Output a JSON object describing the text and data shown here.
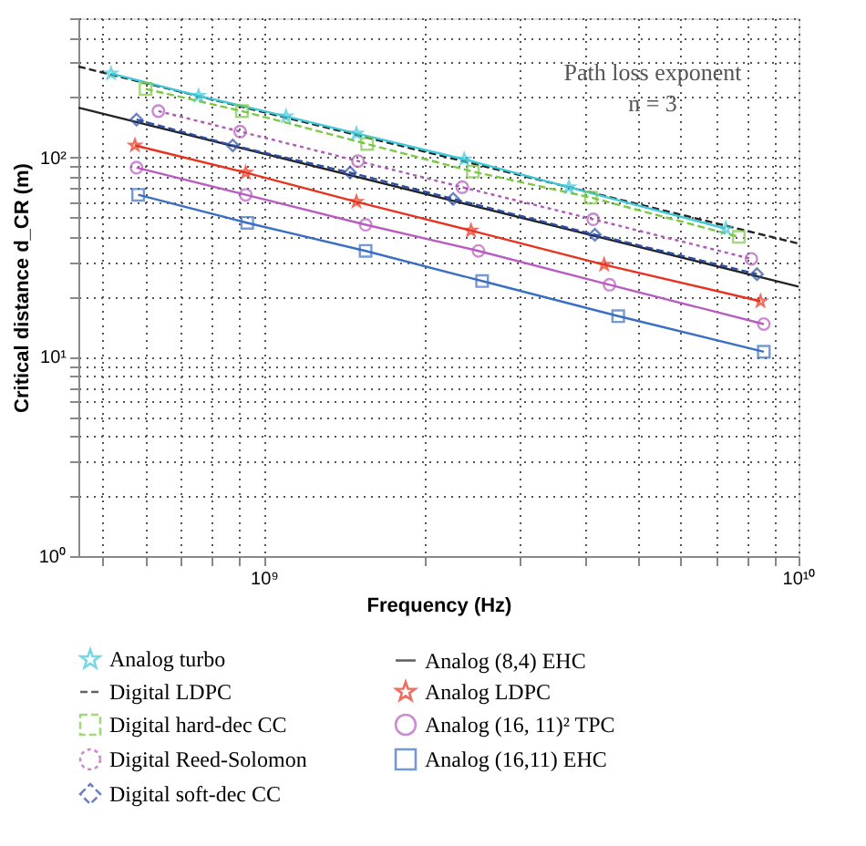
{
  "chart_data": {
    "type": "line",
    "xlabel": "Frequency (Hz)",
    "ylabel": "Critical distance d_CR (m)",
    "log": "xy",
    "grid": true,
    "legend": "bottom",
    "xlim": [
      450000000,
      10000000000
    ],
    "ylim": [
      1,
      500
    ],
    "xticks": [
      {
        "value": 500000000,
        "label": null
      },
      {
        "value": 600000000,
        "label": null
      },
      {
        "value": 700000000,
        "label": null
      },
      {
        "value": 800000000,
        "label": null
      },
      {
        "value": 900000000,
        "label": null
      },
      {
        "value": 1000000000,
        "label": "10⁹"
      },
      {
        "value": 2000000000,
        "label": null
      },
      {
        "value": 3000000000,
        "label": null
      },
      {
        "value": 4000000000,
        "label": null
      },
      {
        "value": 5000000000,
        "label": null
      },
      {
        "value": 6000000000,
        "label": null
      },
      {
        "value": 7000000000,
        "label": null
      },
      {
        "value": 8000000000,
        "label": null
      },
      {
        "value": 9000000000,
        "label": null
      },
      {
        "value": 10000000000,
        "label": "10¹⁰"
      }
    ],
    "yticks": [
      {
        "value": 1,
        "label": "10⁰"
      },
      {
        "value": 2,
        "label": null
      },
      {
        "value": 3,
        "label": null
      },
      {
        "value": 4,
        "label": null
      },
      {
        "value": 5,
        "label": null
      },
      {
        "value": 6,
        "label": null
      },
      {
        "value": 7,
        "label": null
      },
      {
        "value": 8,
        "label": null
      },
      {
        "value": 9,
        "label": null
      },
      {
        "value": 10,
        "label": "10¹"
      },
      {
        "value": 20,
        "label": null
      },
      {
        "value": 30,
        "label": null
      },
      {
        "value": 40,
        "label": null
      },
      {
        "value": 50,
        "label": null
      },
      {
        "value": 60,
        "label": null
      },
      {
        "value": 70,
        "label": null
      },
      {
        "value": 80,
        "label": null
      },
      {
        "value": 90,
        "label": null
      },
      {
        "value": 100,
        "label": "10²"
      },
      {
        "value": 200,
        "label": null
      },
      {
        "value": 300,
        "label": null
      },
      {
        "value": 400,
        "label": null
      },
      {
        "value": 500,
        "label": null
      }
    ],
    "annotations": [
      "Path loss exponent",
      "n = 3"
    ],
    "series": [
      {
        "name": "Analog turbo",
        "color": "#3ec8d8",
        "marker": "star",
        "line_style": "solid",
        "x": [
          518000000,
          755000000,
          1100000000,
          1490000000,
          2370000000,
          3720000000,
          7310000000
        ],
        "values": [
          264,
          204,
          161,
          132,
          98,
          71,
          44
        ]
      },
      {
        "name": "Digital LDPC",
        "color": "#222222",
        "marker": "none",
        "line_style": "dashed",
        "x": [
          450000000,
          10000000000
        ],
        "values": [
          286,
          37
        ]
      },
      {
        "name": "Digital hard-dec CC",
        "color": "#7ac943",
        "marker": "square",
        "line_style": "dashed",
        "x": [
          601000000,
          910000000,
          1560000000,
          2460000000,
          4090000000,
          7730000000
        ],
        "values": [
          221,
          171,
          117,
          85,
          63,
          40
        ]
      },
      {
        "name": "Digital Reed-Solomon",
        "color": "#b05ab8",
        "marker": "circle",
        "line_style": "dotted",
        "x": [
          635000000,
          903000000,
          1500000000,
          2350000000,
          4130000000,
          8160000000
        ],
        "values": [
          171,
          135,
          96,
          71,
          49,
          31
        ]
      },
      {
        "name": "Digital soft-dec CC",
        "color": "#2e4fa8",
        "marker": "diamond",
        "line_style": "dashed",
        "x": [
          578000000,
          875000000,
          1450000000,
          2260000000,
          4160000000,
          8360000000
        ],
        "values": [
          155,
          115,
          84,
          62,
          41,
          26
        ]
      },
      {
        "name": "Analog (8,4) EHC",
        "color": "#222222",
        "marker": "none",
        "line_style": "solid",
        "x": [
          450000000,
          10000000000
        ],
        "values": [
          178,
          22.5
        ]
      },
      {
        "name": "Analog LDPC",
        "color": "#e8321e",
        "marker": "star",
        "line_style": "solid",
        "x": [
          574000000,
          925000000,
          1490000000,
          2440000000,
          4330000000,
          8490000000
        ],
        "values": [
          115,
          84,
          60,
          43,
          29,
          19
        ]
      },
      {
        "name": "Analog (16, 11)² TPC",
        "color": "#b85cc0",
        "marker": "circle",
        "line_style": "solid",
        "x": [
          578000000,
          925000000,
          1550000000,
          2520000000,
          4430000000,
          8610000000
        ],
        "values": [
          89,
          65,
          46,
          34,
          23,
          14.6
        ]
      },
      {
        "name": "Analog (16,11) EHC",
        "color": "#3a6fc4",
        "marker": "square",
        "line_style": "solid",
        "x": [
          582000000,
          931000000,
          1550000000,
          2560000000,
          4600000000,
          8610000000
        ],
        "values": [
          65,
          47,
          34,
          24,
          16,
          10.6
        ]
      }
    ]
  }
}
